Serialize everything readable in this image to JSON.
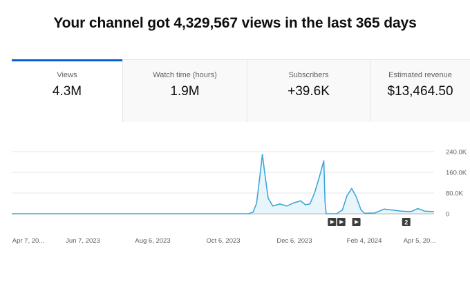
{
  "headline": "Your channel got 4,329,567 views in the last 365 days",
  "tabs": [
    {
      "label": "Views",
      "value": "4.3M",
      "active": true
    },
    {
      "label": "Watch time (hours)",
      "value": "1.9M",
      "active": false
    },
    {
      "label": "Subscribers",
      "value": "+39.6K",
      "active": false
    },
    {
      "label": "Estimated revenue",
      "value": "$13,464.50",
      "active": false
    }
  ],
  "colors": {
    "accent": "#065fd4",
    "line": "#3ea6d9",
    "fill": "#d6eef8"
  },
  "chart_data": {
    "type": "area",
    "title": "",
    "xlabel": "",
    "ylabel": "",
    "y_ticks": [
      "240.0K",
      "160.0K",
      "80.0K",
      "0"
    ],
    "y_tick_values": [
      240000,
      160000,
      80000,
      0
    ],
    "ylim": [
      0,
      240000
    ],
    "x_tick_labels": [
      "Apr 7, 20...",
      "Jun 7, 2023",
      "Aug 6, 2023",
      "Oct 6, 2023",
      "Dec 6, 2023",
      "Feb 4, 2024",
      "Apr 5, 20..."
    ],
    "x_range": [
      "2023-04-07",
      "2024-04-05"
    ],
    "series": [
      {
        "values": [
          [
            "2023-04-07",
            0
          ],
          [
            "2023-10-28",
            0
          ],
          [
            "2023-11-01",
            6000
          ],
          [
            "2023-11-04",
            40000
          ],
          [
            "2023-11-07",
            150000
          ],
          [
            "2023-11-09",
            230000
          ],
          [
            "2023-11-11",
            160000
          ],
          [
            "2023-11-14",
            60000
          ],
          [
            "2023-11-18",
            30000
          ],
          [
            "2023-11-24",
            38000
          ],
          [
            "2023-11-30",
            30000
          ],
          [
            "2023-12-06",
            42000
          ],
          [
            "2023-12-12",
            50000
          ],
          [
            "2023-12-16",
            35000
          ],
          [
            "2023-12-20",
            38000
          ],
          [
            "2023-12-24",
            80000
          ],
          [
            "2023-12-28",
            140000
          ],
          [
            "2024-01-01",
            205000
          ],
          [
            "2024-01-02",
            50000
          ],
          [
            "2024-01-03",
            0
          ],
          [
            "2024-01-12",
            0
          ],
          [
            "2024-01-17",
            15000
          ],
          [
            "2024-01-21",
            70000
          ],
          [
            "2024-01-25",
            98000
          ],
          [
            "2024-01-29",
            65000
          ],
          [
            "2024-02-02",
            15000
          ],
          [
            "2024-02-05",
            2000
          ],
          [
            "2024-02-14",
            3000
          ],
          [
            "2024-02-22",
            18000
          ],
          [
            "2024-03-01",
            14000
          ],
          [
            "2024-03-08",
            10000
          ],
          [
            "2024-03-16",
            8000
          ],
          [
            "2024-03-22",
            20000
          ],
          [
            "2024-03-28",
            10000
          ],
          [
            "2024-04-05",
            8000
          ]
        ]
      }
    ],
    "markers": [
      {
        "date": "2024-01-08",
        "icon": "play-icon",
        "label": ""
      },
      {
        "date": "2024-01-16",
        "icon": "play-icon",
        "label": ""
      },
      {
        "date": "2024-01-29",
        "icon": "play-icon",
        "label": ""
      },
      {
        "date": "2024-03-12",
        "icon": "count-badge",
        "label": "2"
      }
    ],
    "grid": true
  }
}
